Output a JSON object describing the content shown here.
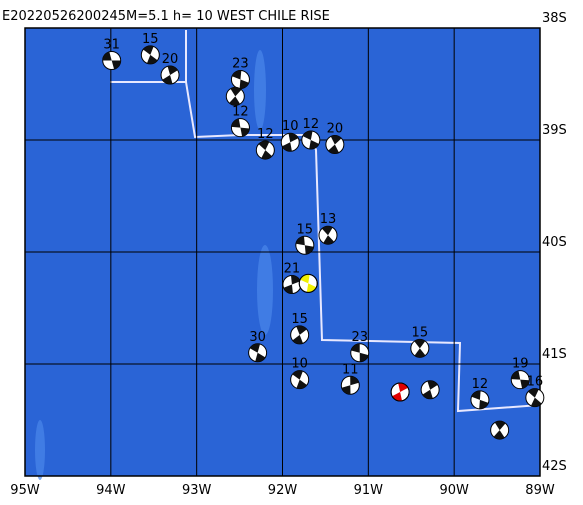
{
  "map": {
    "title": "E20220526200245M=5.1 h= 10 WEST CHILE RISE",
    "xlim": [
      -95,
      -89
    ],
    "ylim": [
      -42,
      -38
    ],
    "xticks": [
      {
        "value": -95,
        "label": "95W"
      },
      {
        "value": -94,
        "label": "94W"
      },
      {
        "value": -93,
        "label": "93W"
      },
      {
        "value": -92,
        "label": "92W"
      },
      {
        "value": -91,
        "label": "91W"
      },
      {
        "value": -90,
        "label": "90W"
      },
      {
        "value": -89,
        "label": "89W"
      }
    ],
    "yticks": [
      {
        "value": -38,
        "label": "38S"
      },
      {
        "value": -39,
        "label": "39S"
      },
      {
        "value": -40,
        "label": "40S"
      },
      {
        "value": -41,
        "label": "41S"
      },
      {
        "value": -42,
        "label": "42S"
      }
    ],
    "events": [
      {
        "lon": -93.99,
        "lat": -38.29,
        "label": "31"
      },
      {
        "lon": -93.54,
        "lat": -38.24,
        "label": "15"
      },
      {
        "lon": -93.31,
        "lat": -38.42,
        "label": "20"
      },
      {
        "lon": -92.49,
        "lat": -38.46,
        "label": "23"
      },
      {
        "lon": -92.55,
        "lat": -38.61
      },
      {
        "lon": -92.49,
        "lat": -38.89,
        "label": "12"
      },
      {
        "lon": -92.2,
        "lat": -39.09,
        "label": "12"
      },
      {
        "lon": -91.91,
        "lat": -39.02,
        "label": "10"
      },
      {
        "lon": -91.67,
        "lat": -39.0,
        "label": "12"
      },
      {
        "lon": -91.39,
        "lat": -39.04,
        "label": "20"
      },
      {
        "lon": -91.74,
        "lat": -39.94,
        "label": "15"
      },
      {
        "lon": -91.47,
        "lat": -39.85,
        "label": "13"
      },
      {
        "lon": -91.89,
        "lat": -40.29,
        "label": "21"
      },
      {
        "lon": -92.29,
        "lat": -40.9,
        "label": "30"
      },
      {
        "lon": -91.8,
        "lat": -40.74,
        "label": "15"
      },
      {
        "lon": -91.1,
        "lat": -40.9,
        "label": "23"
      },
      {
        "lon": -90.4,
        "lat": -40.86,
        "label": "15"
      },
      {
        "lon": -91.21,
        "lat": -41.19,
        "label": "11"
      },
      {
        "lon": -91.8,
        "lat": -41.14,
        "label": "10"
      },
      {
        "lon": -90.28,
        "lat": -41.23
      },
      {
        "lon": -89.7,
        "lat": -41.32,
        "label": "12"
      },
      {
        "lon": -89.47,
        "lat": -41.59
      },
      {
        "lon": -89.23,
        "lat": -41.14,
        "label": "19"
      },
      {
        "lon": -89.06,
        "lat": -41.3,
        "label": "16"
      },
      {
        "lon": -90.63,
        "lat": -41.25,
        "color": "#e00000"
      },
      {
        "lon": -91.7,
        "lat": -40.28,
        "color": "#f0f000"
      }
    ]
  }
}
